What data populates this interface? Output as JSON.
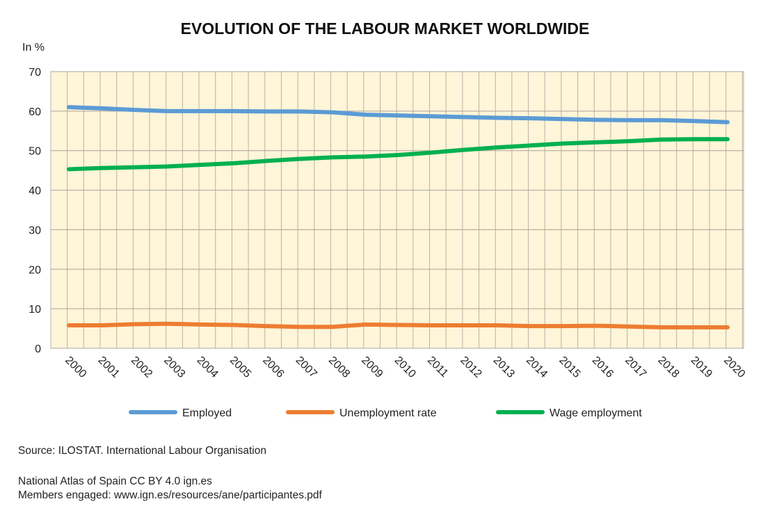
{
  "chart_data": {
    "type": "line",
    "title": "EVOLUTION OF THE LABOUR MARKET WORLDWIDE",
    "ylabel": "In %",
    "xlabel": "",
    "ylim": [
      0,
      70
    ],
    "yticks": [
      0,
      10,
      20,
      30,
      40,
      50,
      60,
      70
    ],
    "grid": true,
    "legend": "bottom",
    "x": [
      "2000",
      "2001",
      "2002",
      "2003",
      "2004",
      "2005",
      "2006",
      "2007",
      "2008",
      "2009",
      "2010",
      "2011",
      "2012",
      "2013",
      "2014",
      "2015",
      "2016",
      "2017",
      "2018",
      "2019",
      "2020"
    ],
    "series": [
      {
        "name": "Employed",
        "color": "#5b9bd5",
        "values": [
          61.0,
          60.7,
          60.3,
          60.0,
          60.0,
          60.0,
          59.9,
          59.9,
          59.7,
          59.1,
          58.9,
          58.7,
          58.5,
          58.3,
          58.2,
          58.0,
          57.8,
          57.7,
          57.7,
          57.5,
          57.2
        ]
      },
      {
        "name": "Unemployment rate",
        "color": "#ed7d31",
        "values": [
          5.8,
          5.8,
          6.1,
          6.2,
          6.0,
          5.9,
          5.6,
          5.4,
          5.4,
          6.0,
          5.9,
          5.8,
          5.8,
          5.8,
          5.6,
          5.6,
          5.7,
          5.5,
          5.3,
          5.3,
          5.3
        ]
      },
      {
        "name": "Wage employment",
        "color": "#00b050",
        "values": [
          45.3,
          45.6,
          45.8,
          46.0,
          46.4,
          46.8,
          47.4,
          47.9,
          48.3,
          48.5,
          48.9,
          49.5,
          50.2,
          50.8,
          51.3,
          51.8,
          52.1,
          52.4,
          52.8,
          52.9,
          52.9
        ]
      }
    ]
  },
  "footer": {
    "source": "Source:  ILOSTAT. International Labour Organisation",
    "atlas": "National Atlas of Spain CC BY 4.0 ign.es",
    "members": "Members engaged: www.ign.es/resources/ane/participantes.pdf"
  }
}
